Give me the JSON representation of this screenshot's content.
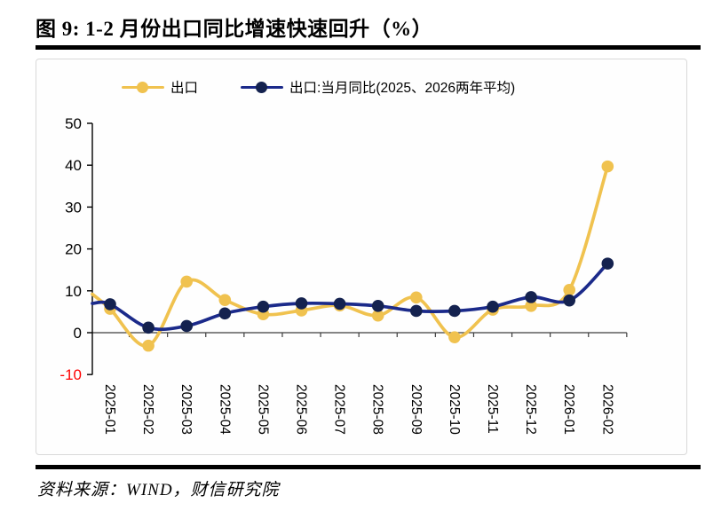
{
  "header": {
    "title": "图 9: 1-2 月份出口同比增速快速回升（%）"
  },
  "legend": {
    "items": [
      {
        "label": "出口",
        "color": "#F0C24F",
        "marker_color": "#F0C24F"
      },
      {
        "label": "出口:当月同比(2025、2026两年平均)",
        "color": "#1B2A8A",
        "marker_color": "#14224F"
      }
    ]
  },
  "chart_data": {
    "type": "line",
    "title": "图 9: 1-2 月份出口同比增速快速回升（%）",
    "categories": [
      "2025-01",
      "2025-02",
      "2025-03",
      "2025-04",
      "2025-05",
      "2025-06",
      "2025-07",
      "2025-08",
      "2025-09",
      "2025-10",
      "2025-11",
      "2025-12",
      "2026-01",
      "2026-02"
    ],
    "series": [
      {
        "name": "出口",
        "color": "#F0C24F",
        "marker_color": "#F0C24F",
        "values": [
          5.7,
          -3.1,
          12.2,
          7.8,
          4.4,
          5.3,
          6.5,
          4.1,
          8.4,
          -1.1,
          5.5,
          6.4,
          10.2,
          39.7
        ],
        "edge_lead_in_value": 9.2
      },
      {
        "name": "出口:当月同比(2025、2026两年平均)",
        "color": "#1B2A8A",
        "marker_color": "#14224F",
        "values": [
          6.8,
          1.2,
          1.6,
          4.6,
          6.2,
          7.0,
          6.9,
          6.4,
          5.2,
          5.2,
          6.2,
          8.5,
          7.7,
          16.5
        ],
        "edge_lead_in_value": 7.0
      }
    ],
    "xlabel": "",
    "ylabel": "",
    "ylim": [
      -10,
      50
    ],
    "yticks": [
      50,
      40,
      30,
      20,
      10,
      0,
      -10
    ],
    "ytick_negative_color": "#FF0000",
    "grid": false,
    "smooth": true,
    "legend_position": "top"
  },
  "footer": {
    "source": "资料来源：WIND，财信研究院"
  }
}
